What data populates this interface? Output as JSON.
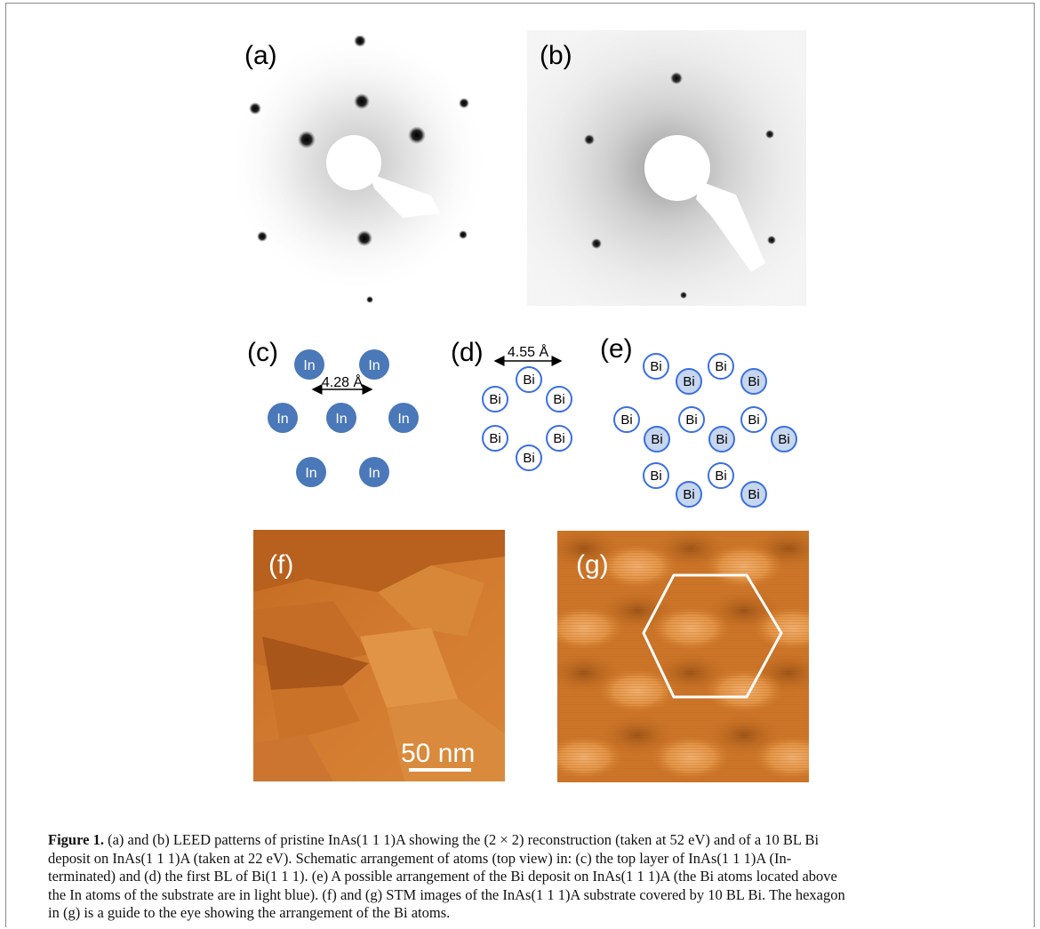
{
  "figure": {
    "labels": {
      "a": "(a)",
      "b": "(b)",
      "c": "(c)",
      "d": "(d)",
      "e": "(e)",
      "f": "(f)",
      "g": "(g)"
    },
    "schematic_c": {
      "atom": "In",
      "distance": "4.28 Å"
    },
    "schematic_d": {
      "atom": "Bi",
      "distance": "4.55 Å"
    },
    "schematic_e": {
      "atom": "Bi"
    },
    "scale_bar": "50 nm",
    "colors": {
      "in_atom": "#4a78b8",
      "bi_ring": "#3b6fe0",
      "bi_fill_light": "#c6d6ee",
      "stm_base": "#d07a2c"
    },
    "caption": {
      "title": "Figure 1.",
      "line1": "(a) and (b) LEED patterns of pristine InAs(1 1 1)A showing the (2 × 2) reconstruction (taken at 52 eV) and of a 10 BL Bi",
      "line2": "deposit on InAs(1 1 1)A (taken at 22 eV). Schematic arrangement of atoms (top view) in: (c) the top layer of InAs(1 1 1)A (In-",
      "line3": "terminated) and (d) the first BL of Bi(1 1 1). (e) A possible arrangement of the Bi deposit on InAs(1 1 1)A (the Bi atoms located above",
      "line4": "the In atoms of the substrate are in light blue). (f) and (g) STM images of the InAs(1 1 1)A substrate covered by 10 BL Bi. The hexagon",
      "line5": "in (g) is a guide to the eye showing the arrangement of the Bi atoms."
    }
  }
}
